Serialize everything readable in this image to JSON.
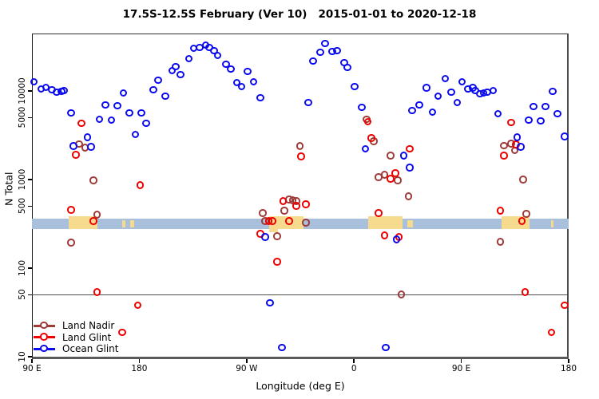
{
  "chart_data": {
    "type": "scatter",
    "title": "17.5S-12.5S February (Ver 10)   2015-01-01 to 2020-12-18",
    "xlabel": "Longitude (deg E)",
    "ylabel": "N Total",
    "x_axis": {
      "range_deg_east_continued": [
        90,
        540
      ],
      "ticks": [
        90,
        180,
        270,
        360,
        450,
        540
      ],
      "tick_labels": [
        "90 E",
        "180",
        "90 W",
        "0",
        "90 E",
        "180"
      ]
    },
    "y_axis": {
      "scale": "log10",
      "range": [
        9.4,
        44000
      ],
      "ticks": [
        10,
        50,
        100,
        500,
        1000,
        5000,
        10000
      ],
      "tick_labels": [
        "10",
        "50",
        "100",
        "500",
        "1000",
        "5000",
        "10000"
      ]
    },
    "reference_line_y": 50,
    "legend": {
      "position": "bottom-left",
      "entries": [
        "Land Nadir",
        "Land Glint",
        "Ocean Glint"
      ]
    },
    "map_strip": {
      "comment": "world coastline strip at 17.5S-12.5S drawn across plot",
      "ocean_color": "#A9C0DC",
      "land_color": "#F6DA8D",
      "n_value_range": [
        276,
        362
      ],
      "land_major_lon": [
        [
          121,
          145
        ],
        [
          289,
          318
        ],
        [
          372,
          401
        ],
        [
          484,
          507
        ]
      ],
      "land_minor_lon": [
        [
          165.5,
          168.5
        ],
        [
          172.5,
          175.5
        ],
        [
          405,
          409.5
        ],
        [
          525,
          527.5
        ]
      ],
      "land_below_lon": [
        [
          289,
          296
        ]
      ]
    },
    "series": [
      {
        "name": "Land Nadir",
        "color": "#9E3B38",
        "points": [
          [
            130,
            2500
          ],
          [
            135,
            2260
          ],
          [
            142,
            966
          ],
          [
            145,
            397
          ],
          [
            123,
            193
          ],
          [
            284,
            414
          ],
          [
            286,
            337
          ],
          [
            296,
            227
          ],
          [
            302,
            441
          ],
          [
            306,
            589
          ],
          [
            309,
            577
          ],
          [
            312,
            565
          ],
          [
            320,
            323
          ],
          [
            315,
            2360
          ],
          [
            371,
            4760
          ],
          [
            377,
            2670
          ],
          [
            391,
            1840
          ],
          [
            381,
            1050
          ],
          [
            386,
            1120
          ],
          [
            397,
            966
          ],
          [
            406,
            640
          ],
          [
            400,
            50
          ],
          [
            483,
            197
          ],
          [
            505,
            406
          ],
          [
            502,
            986
          ],
          [
            486,
            2400
          ],
          [
            492,
            2510
          ],
          [
            495,
            2120
          ]
        ]
      },
      {
        "name": "Land Glint",
        "color": "#EE0000",
        "points": [
          [
            132,
            4290
          ],
          [
            127,
            1880
          ],
          [
            123,
            450
          ],
          [
            142,
            337
          ],
          [
            181,
            854
          ],
          [
            145,
            53
          ],
          [
            166,
            18.6
          ],
          [
            179,
            37.6
          ],
          [
            282,
            242
          ],
          [
            289,
            337
          ],
          [
            292,
            337
          ],
          [
            301,
            565
          ],
          [
            306,
            337
          ],
          [
            312,
            499
          ],
          [
            320,
            520
          ],
          [
            296,
            117
          ],
          [
            316,
            1800
          ],
          [
            372,
            4470
          ],
          [
            375,
            2900
          ],
          [
            381,
            414
          ],
          [
            391,
            1010
          ],
          [
            395,
            1170
          ],
          [
            386,
            232
          ],
          [
            398,
            223
          ],
          [
            407,
            2210
          ],
          [
            483,
            441
          ],
          [
            501,
            337
          ],
          [
            492,
            4380
          ],
          [
            496,
            2460
          ],
          [
            486,
            1840
          ],
          [
            504,
            53
          ],
          [
            526,
            18.6
          ],
          [
            537,
            37.6
          ]
        ]
      },
      {
        "name": "Ocean Glint",
        "color": "#0B0BEE",
        "points": [
          [
            92,
            12600
          ],
          [
            98,
            10400
          ],
          [
            102,
            10900
          ],
          [
            107,
            10200
          ],
          [
            111,
            9620
          ],
          [
            115,
            9820
          ],
          [
            117,
            10000
          ],
          [
            123,
            5610
          ],
          [
            125,
            2360
          ],
          [
            137,
            2960
          ],
          [
            140,
            2310
          ],
          [
            147,
            4760
          ],
          [
            152,
            6900
          ],
          [
            157,
            4660
          ],
          [
            162,
            6760
          ],
          [
            167,
            9410
          ],
          [
            172,
            5610
          ],
          [
            177,
            3210
          ],
          [
            182,
            5610
          ],
          [
            186,
            4290
          ],
          [
            192,
            10200
          ],
          [
            196,
            13100
          ],
          [
            202,
            8670
          ],
          [
            208,
            16800
          ],
          [
            211,
            18700
          ],
          [
            215,
            15200
          ],
          [
            222,
            22900
          ],
          [
            226,
            30000
          ],
          [
            231,
            30600
          ],
          [
            236,
            32600
          ],
          [
            239,
            30600
          ],
          [
            243,
            28200
          ],
          [
            246,
            24900
          ],
          [
            253,
            19800
          ],
          [
            257,
            17500
          ],
          [
            262,
            12300
          ],
          [
            266,
            11100
          ],
          [
            271,
            16400
          ],
          [
            276,
            12600
          ],
          [
            282,
            8320
          ],
          [
            322,
            7350
          ],
          [
            326,
            21500
          ],
          [
            332,
            27000
          ],
          [
            336,
            34000
          ],
          [
            342,
            27600
          ],
          [
            346,
            28200
          ],
          [
            352,
            20700
          ],
          [
            355,
            18200
          ],
          [
            361,
            11100
          ],
          [
            367,
            6490
          ],
          [
            370,
            2210
          ],
          [
            402,
            1840
          ],
          [
            407,
            1350
          ],
          [
            409,
            5970
          ],
          [
            415,
            6900
          ],
          [
            421,
            10700
          ],
          [
            426,
            5730
          ],
          [
            431,
            8670
          ],
          [
            437,
            13700
          ],
          [
            442,
            9620
          ],
          [
            447,
            7350
          ],
          [
            451,
            12600
          ],
          [
            456,
            10400
          ],
          [
            460,
            10700
          ],
          [
            462,
            10000
          ],
          [
            466,
            9230
          ],
          [
            469,
            9410
          ],
          [
            472,
            9620
          ],
          [
            477,
            10000
          ],
          [
            481,
            5500
          ],
          [
            497,
            2960
          ],
          [
            500,
            2310
          ],
          [
            507,
            4660
          ],
          [
            511,
            6620
          ],
          [
            517,
            4560
          ],
          [
            521,
            6620
          ],
          [
            527,
            9820
          ],
          [
            531,
            5500
          ],
          [
            537,
            3020
          ],
          [
            286,
            223
          ],
          [
            290,
            40
          ],
          [
            300,
            12.6
          ],
          [
            387,
            12.6
          ],
          [
            396,
            209
          ]
        ]
      }
    ]
  }
}
